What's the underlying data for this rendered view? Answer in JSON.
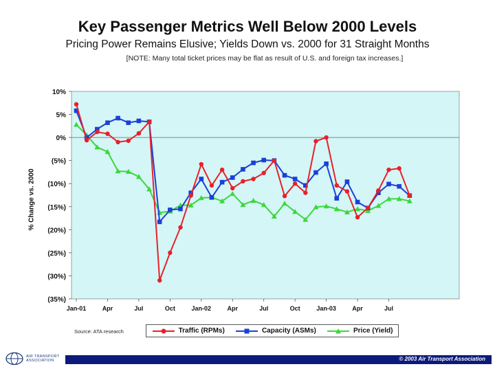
{
  "title": "Key Passenger Metrics Well Below 2000 Levels",
  "subtitle": "Pricing Power Remains Elusive; Yields Down vs. 2000 for 31 Straight Months",
  "note": "[NOTE: Many total ticket prices may be flat as result of U.S. and foreign tax increases.]",
  "source": "Source: ATA research",
  "copyright": "© 2003 Air Transport Association",
  "logo": {
    "line1": "AIR TRANSPORT",
    "line2": "ASSOCIATION"
  },
  "chart_data": {
    "type": "line",
    "ylabel": "% Change vs. 2000",
    "xlabel": "",
    "ylim": [
      -35,
      10
    ],
    "yticks": [
      10,
      5,
      0,
      -5,
      -10,
      -15,
      -20,
      -25,
      -30,
      -35
    ],
    "ytick_labels": [
      "10%",
      "5%",
      "0%",
      "(5%)",
      "(10%)",
      "(15%)",
      "(20%)",
      "(25%)",
      "(30%)",
      "(35%)"
    ],
    "x_tick_labels": [
      {
        "index": 0,
        "label": "Jan-01"
      },
      {
        "index": 3,
        "label": "Apr"
      },
      {
        "index": 6,
        "label": "Jul"
      },
      {
        "index": 9,
        "label": "Oct"
      },
      {
        "index": 12,
        "label": "Jan-02"
      },
      {
        "index": 15,
        "label": "Apr"
      },
      {
        "index": 18,
        "label": "Jul"
      },
      {
        "index": 21,
        "label": "Oct"
      },
      {
        "index": 24,
        "label": "Jan-03"
      },
      {
        "index": 27,
        "label": "Apr"
      },
      {
        "index": 30,
        "label": "Jul"
      }
    ],
    "n_points": 33,
    "series": [
      {
        "name": "Traffic (RPMs)",
        "color": "#e8202a",
        "marker": "circle",
        "values": [
          7.2,
          -0.6,
          1.2,
          0.8,
          -1.0,
          -0.7,
          0.9,
          3.4,
          -31.0,
          -25.0,
          -19.5,
          -12.6,
          -5.8,
          -10.4,
          -7.0,
          -11.0,
          -9.5,
          -9.0,
          -7.7,
          -5.0,
          -12.7,
          -10.0,
          -12.0,
          -0.8,
          0.0,
          -10.4,
          -11.7,
          -17.3,
          -15.3,
          -11.5,
          -7.0,
          -6.7,
          -12.6
        ]
      },
      {
        "name": "Capacity (ASMs)",
        "color": "#1c3fd9",
        "marker": "square",
        "values": [
          5.8,
          0.0,
          1.8,
          3.2,
          4.2,
          3.2,
          3.6,
          3.4,
          -18.3,
          -15.7,
          -15.5,
          -12.0,
          -9.0,
          -13.0,
          -9.7,
          -8.7,
          -6.9,
          -5.5,
          -4.9,
          -5.0,
          -8.2,
          -9.0,
          -10.4,
          -7.6,
          -5.7,
          -13.2,
          -9.6,
          -14.0,
          -15.3,
          -12.0,
          -10.1,
          -10.6,
          -12.6
        ]
      },
      {
        "name": "Price (Yield)",
        "color": "#3ed63e",
        "marker": "triangle",
        "values": [
          2.8,
          0.5,
          -2.1,
          -3.1,
          -7.3,
          -7.4,
          -8.5,
          -11.2,
          -16.3,
          -16.0,
          -14.7,
          -14.7,
          -13.1,
          -13.0,
          -13.8,
          -12.2,
          -14.6,
          -13.7,
          -14.6,
          -17.1,
          -14.3,
          -16.1,
          -17.8,
          -15.1,
          -14.9,
          -15.5,
          -16.2,
          -15.5,
          -15.9,
          -14.8,
          -13.3,
          -13.3,
          -13.8
        ]
      }
    ],
    "plot_background": "#d4f6f6"
  }
}
